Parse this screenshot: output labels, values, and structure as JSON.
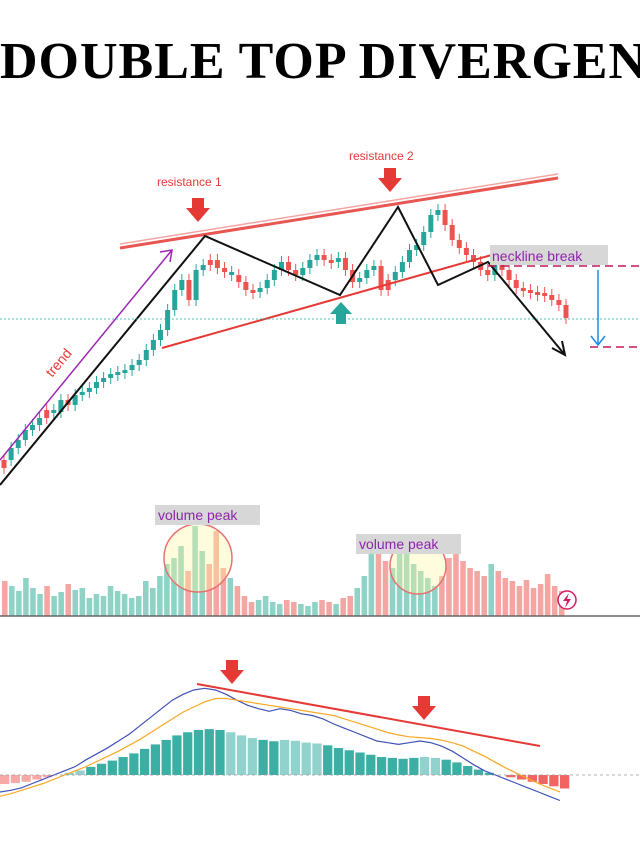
{
  "title": "DOUBLE TOP DIVERGEN",
  "colors": {
    "bull": "#26a69a",
    "bear": "#ef5350",
    "resistance": "#e53935",
    "trend_arrow": "#9c27b0",
    "neckline_label": "#8e24aa",
    "volume_bull": "#8fd3c6",
    "volume_bear": "#f4a6a3",
    "macd_line": "#3f51b5",
    "signal_line": "#f9a825"
  },
  "annotations": {
    "resistance1": "resistance 1",
    "resistance2": "resistance 2",
    "neckline": "neckline break",
    "trend": "trend",
    "volume_peak_1": "volume peak",
    "volume_peak_2": "volume peak"
  },
  "chart_data": [
    {
      "type": "candlestick",
      "description_of_series": "price",
      "x": [
        1,
        2,
        3,
        4,
        5,
        6,
        7,
        8,
        9,
        10,
        11,
        12,
        13,
        14,
        15,
        16,
        17,
        18,
        19,
        20,
        21,
        22,
        23,
        24,
        25,
        26,
        27,
        28,
        29,
        30,
        31,
        32,
        33,
        34,
        35,
        36,
        37,
        38,
        39,
        40,
        41,
        42,
        43,
        44,
        45,
        46,
        47,
        48,
        49,
        50,
        51,
        52,
        53,
        54,
        55,
        56,
        57,
        58,
        59,
        60,
        61,
        62,
        63,
        64,
        65,
        66,
        67,
        68,
        69,
        70,
        71,
        72,
        73,
        74,
        75,
        76,
        77,
        78,
        79,
        80
      ],
      "close": [
        460,
        448,
        440,
        430,
        425,
        418,
        410,
        412,
        400,
        405,
        395,
        392,
        388,
        382,
        378,
        374,
        372,
        370,
        365,
        360,
        350,
        340,
        330,
        310,
        290,
        280,
        300,
        270,
        265,
        260,
        268,
        272,
        275,
        282,
        290,
        292,
        288,
        280,
        270,
        262,
        270,
        275,
        268,
        260,
        255,
        260,
        262,
        258,
        270,
        282,
        278,
        270,
        266,
        290,
        280,
        272,
        262,
        250,
        245,
        232,
        215,
        210,
        225,
        240,
        248,
        255,
        262,
        270,
        275,
        265,
        270,
        280,
        288,
        290,
        292,
        293,
        295,
        300,
        305,
        318
      ],
      "up": [
        0,
        1,
        1,
        1,
        1,
        1,
        0,
        1,
        1,
        0,
        1,
        1,
        1,
        1,
        1,
        1,
        1,
        1,
        1,
        1,
        1,
        1,
        1,
        1,
        1,
        1,
        0,
        1,
        1,
        0,
        0,
        0,
        1,
        0,
        0,
        0,
        1,
        1,
        1,
        1,
        0,
        0,
        1,
        1,
        1,
        0,
        0,
        1,
        0,
        0,
        1,
        1,
        1,
        0,
        0,
        1,
        1,
        1,
        1,
        1,
        1,
        1,
        0,
        0,
        0,
        0,
        0,
        0,
        0,
        1,
        0,
        0,
        0,
        0,
        0,
        0,
        0,
        0,
        0,
        0
      ]
    },
    {
      "type": "bar",
      "description_of_series": "volume",
      "values": [
        35,
        30,
        25,
        38,
        28,
        22,
        30,
        20,
        24,
        32,
        26,
        28,
        18,
        22,
        20,
        30,
        25,
        22,
        18,
        20,
        35,
        28,
        40,
        52,
        58,
        70,
        45,
        90,
        65,
        52,
        85,
        48,
        38,
        30,
        20,
        14,
        16,
        20,
        14,
        12,
        16,
        14,
        12,
        10,
        14,
        16,
        14,
        12,
        18,
        20,
        28,
        40,
        70,
        62,
        55,
        48,
        62,
        75,
        52,
        45,
        38,
        30,
        40,
        58,
        62,
        55,
        48,
        45,
        40,
        52,
        45,
        38,
        35,
        30,
        36,
        28,
        32,
        42,
        30,
        25
      ]
    },
    {
      "type": "line",
      "description_of_series": "macd",
      "series": [
        {
          "name": "",
          "values": [
            -20,
            -18,
            -15,
            -10,
            -5,
            0,
            5,
            10,
            18,
            25,
            32,
            40,
            48,
            58,
            68,
            78,
            88,
            95,
            100,
            102,
            100,
            95,
            88,
            82,
            78,
            75,
            78,
            76,
            72,
            70,
            66,
            60,
            55,
            50,
            45,
            40,
            38,
            36,
            38,
            40,
            38,
            34,
            28,
            20,
            12,
            5,
            0,
            -5,
            -10,
            -15,
            -20,
            -25,
            -30
          ]
        },
        {
          "name": "",
          "values": [
            -25,
            -22,
            -18,
            -14,
            -10,
            -5,
            0,
            5,
            10,
            16,
            22,
            28,
            35,
            42,
            50,
            58,
            66,
            74,
            80,
            86,
            90,
            90,
            88,
            86,
            84,
            82,
            80,
            78,
            76,
            74,
            72,
            70,
            66,
            62,
            58,
            54,
            50,
            47,
            45,
            44,
            43,
            41,
            38,
            34,
            28,
            22,
            15,
            8,
            2,
            -4,
            -10,
            -15,
            -20
          ]
        }
      ]
    }
  ]
}
